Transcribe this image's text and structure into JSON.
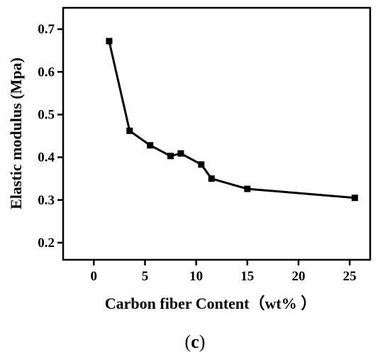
{
  "chart_data": {
    "type": "line",
    "xlabel": "Carbon fiber Content（wt% ）",
    "ylabel": "Elastic modulus (Mpa)",
    "caption_open": "(",
    "caption_letter": "c",
    "caption_close": ")",
    "xlim": [
      -3,
      27
    ],
    "ylim": [
      0.16,
      0.75
    ],
    "xticks": [
      0,
      5,
      10,
      15,
      20,
      25
    ],
    "yticks": [
      0.2,
      0.3,
      0.4,
      0.5,
      0.6,
      0.7
    ],
    "xtick_labels": [
      "0",
      "5",
      "10",
      "15",
      "20",
      "25"
    ],
    "ytick_labels": [
      "0.2",
      "0.3",
      "0.4",
      "0.5",
      "0.6",
      "0.7"
    ],
    "line_color": "#000000",
    "marker": "square",
    "grid": false,
    "legend": false,
    "series": [
      {
        "x": [
          1.5,
          3.5,
          5.5,
          7.5,
          8.5,
          10.5,
          11.5,
          15,
          25.5
        ],
        "y": [
          0.672,
          0.462,
          0.428,
          0.403,
          0.409,
          0.383,
          0.35,
          0.326,
          0.305
        ]
      }
    ]
  }
}
